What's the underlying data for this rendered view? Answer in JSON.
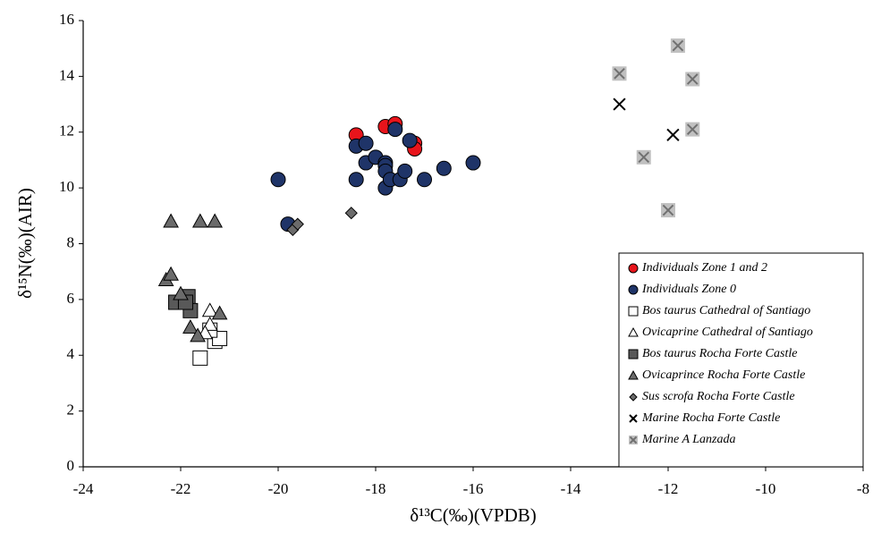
{
  "chart_data": {
    "type": "scatter",
    "x_label": "δ¹³C(‰)(VPDB)",
    "y_label": "δ¹⁵N(‰)(AIR)",
    "xlim": [
      -24,
      -8
    ],
    "xticks": [
      -24,
      -22,
      -20,
      -18,
      -16,
      -14,
      -12,
      -10,
      -8
    ],
    "ylim": [
      0,
      16
    ],
    "yticks": [
      0,
      2,
      4,
      6,
      8,
      10,
      12,
      14,
      16
    ],
    "legend": "lower right",
    "series": [
      {
        "name": "Individuals Zone 1 and 2",
        "color": "#e8141b",
        "marker": "circle",
        "x": [
          -18.4,
          -17.8,
          -17.6,
          -17.2,
          -17.2
        ],
        "values": [
          11.9,
          12.2,
          12.3,
          11.6,
          11.4
        ]
      },
      {
        "name": "Individuals Zone 0",
        "color": "#1f3468",
        "marker": "circle",
        "x": [
          -20.0,
          -19.8,
          -18.4,
          -18.4,
          -18.2,
          -18.2,
          -18.0,
          -17.8,
          -17.8,
          -17.8,
          -17.8,
          -17.7,
          -17.6,
          -17.5,
          -17.4,
          -17.3,
          -17.0,
          -16.6,
          -16.0
        ],
        "values": [
          10.3,
          8.7,
          11.5,
          10.3,
          11.6,
          10.9,
          11.1,
          10.9,
          10.8,
          10.6,
          10.0,
          10.3,
          12.1,
          10.3,
          10.6,
          11.7,
          10.3,
          10.7,
          10.9
        ]
      },
      {
        "name": "Bos taurus Cathedral of Santiago",
        "color": "#ffffff",
        "marker": "square",
        "x": [
          -21.6,
          -21.3,
          -21.2,
          -21.4
        ],
        "values": [
          3.9,
          4.5,
          4.6,
          4.9
        ]
      },
      {
        "name": "Ovicaprine Cathedral of Santiago",
        "color": "#ffffff",
        "marker": "triangle",
        "x": [
          -21.4,
          -21.4,
          -21.5
        ],
        "values": [
          5.6,
          5.1,
          4.8
        ]
      },
      {
        "name": "Bos taurus Rocha Forte Castle",
        "color": "#595959",
        "marker": "square",
        "x": [
          -22.1,
          -21.85,
          -21.8,
          -21.9
        ],
        "values": [
          5.9,
          6.1,
          5.6,
          5.9
        ]
      },
      {
        "name": "Ovicaprince Rocha Forte Castle",
        "color": "#6b6b6b",
        "marker": "triangle",
        "x": [
          -22.2,
          -21.6,
          -21.3,
          -22.3,
          -22.2,
          -22.0,
          -21.8,
          -21.65,
          -21.2
        ],
        "values": [
          8.8,
          8.8,
          8.8,
          6.7,
          6.9,
          6.2,
          5.0,
          4.7,
          5.5
        ]
      },
      {
        "name": "Sus scrofa Rocha Forte Castle",
        "color": "#6b6b6b",
        "marker": "diamond",
        "x": [
          -19.7,
          -19.6,
          -18.5
        ],
        "values": [
          8.5,
          8.7,
          9.1
        ]
      },
      {
        "name": "Marine Rocha Forte Castle",
        "color": "#000000",
        "marker": "cross",
        "x": [
          -13.0,
          -11.9
        ],
        "values": [
          13.0,
          11.9
        ]
      },
      {
        "name": "Marine A Lanzada",
        "color": "#c0c0c0",
        "marker": "boxcross",
        "x": [
          -13.0,
          -11.8,
          -11.5,
          -11.5,
          -12.5,
          -12.0
        ],
        "values": [
          14.1,
          15.1,
          13.9,
          12.1,
          11.1,
          9.2
        ]
      }
    ]
  }
}
